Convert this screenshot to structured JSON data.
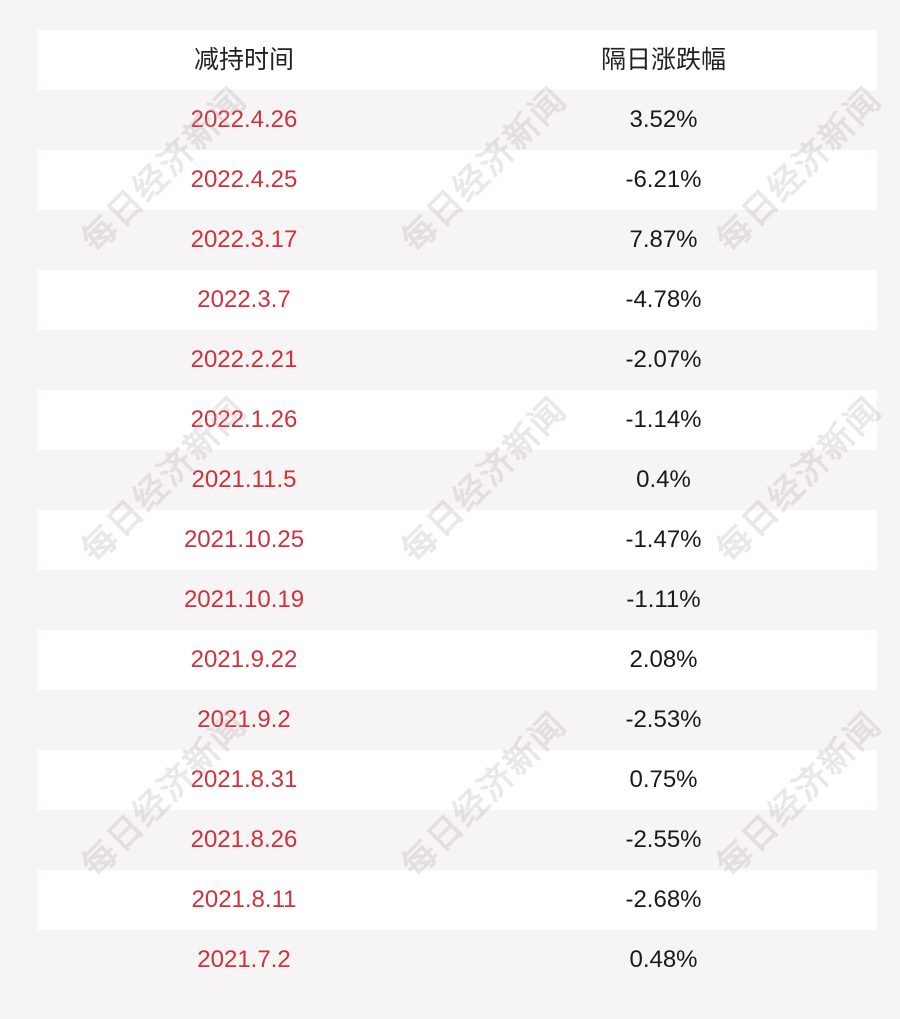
{
  "table": {
    "headers": [
      "减持时间",
      "隔日涨跌幅"
    ],
    "rows": [
      {
        "date": "2022.4.26",
        "change": "3.52%"
      },
      {
        "date": "2022.4.25",
        "change": "-6.21%"
      },
      {
        "date": "2022.3.17",
        "change": "7.87%"
      },
      {
        "date": "2022.3.7",
        "change": "-4.78%"
      },
      {
        "date": "2022.2.21",
        "change": "-2.07%"
      },
      {
        "date": "2022.1.26",
        "change": "-1.14%"
      },
      {
        "date": "2021.11.5",
        "change": "0.4%"
      },
      {
        "date": "2021.10.25",
        "change": "-1.47%"
      },
      {
        "date": "2021.10.19",
        "change": "-1.11%"
      },
      {
        "date": "2021.9.22",
        "change": "2.08%"
      },
      {
        "date": "2021.9.2",
        "change": "-2.53%"
      },
      {
        "date": "2021.8.31",
        "change": "0.75%"
      },
      {
        "date": "2021.8.26",
        "change": "-2.55%"
      },
      {
        "date": "2021.8.11",
        "change": "-2.68%"
      },
      {
        "date": "2021.7.2",
        "change": "0.48%"
      }
    ]
  },
  "watermark": "每日经济新闻",
  "colors": {
    "date_text": "#d1313a",
    "value_text": "#1a1a1a",
    "header_text": "#222222",
    "row_white": "#ffffff",
    "row_shade": "#f6f4f5"
  }
}
